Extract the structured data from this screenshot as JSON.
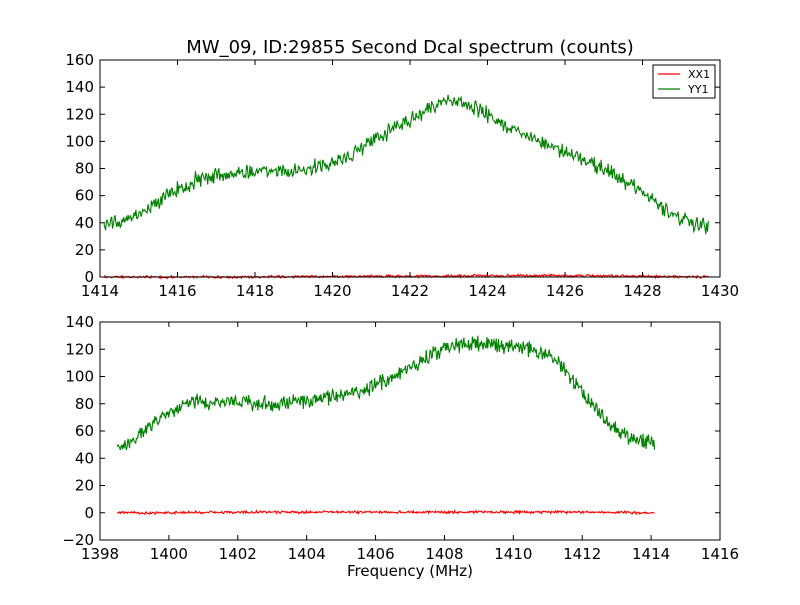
{
  "figure": {
    "title": "MW_09, ID:29855 Second Dcal spectrum (counts)"
  },
  "chart_data": [
    {
      "type": "line",
      "xlim": [
        1414,
        1430
      ],
      "ylim": [
        0,
        160
      ],
      "xticks": [
        "1414",
        "1416",
        "1418",
        "1420",
        "1422",
        "1424",
        "1426",
        "1428",
        "1430"
      ],
      "yticks": [
        "0",
        "20",
        "40",
        "60",
        "80",
        "100",
        "120",
        "140",
        "160"
      ],
      "x_ticks_values": [
        1414,
        1416,
        1418,
        1420,
        1422,
        1424,
        1426,
        1428,
        1430
      ],
      "y_ticks_values": [
        0,
        20,
        40,
        60,
        80,
        100,
        120,
        140,
        160
      ],
      "legend": {
        "placement": "top-right"
      },
      "series": [
        {
          "name": "XX1",
          "color": "#ff0000",
          "x": [
            1414.1,
            1416,
            1418,
            1420,
            1422,
            1424,
            1426,
            1428,
            1429.7
          ],
          "y": [
            0,
            0,
            0,
            0.5,
            0.5,
            1,
            1,
            0.5,
            0
          ]
        },
        {
          "name": "YY1",
          "color": "#008000",
          "x": [
            1414.1,
            1414.5,
            1415,
            1415.5,
            1416,
            1416.5,
            1417,
            1417.5,
            1418,
            1418.5,
            1419,
            1419.5,
            1420,
            1420.5,
            1421,
            1421.5,
            1422,
            1422.5,
            1423,
            1423.5,
            1424,
            1424.5,
            1425,
            1425.5,
            1426,
            1426.5,
            1427,
            1427.5,
            1428,
            1428.5,
            1429,
            1429.7
          ],
          "y": [
            39,
            41,
            46,
            56,
            64,
            72,
            75,
            76,
            77,
            78,
            78,
            80,
            84,
            90,
            100,
            108,
            116,
            124,
            130,
            128,
            120,
            110,
            104,
            98,
            92,
            86,
            80,
            72,
            62,
            52,
            42,
            37
          ]
        }
      ]
    },
    {
      "type": "line",
      "xlim": [
        1398,
        1416
      ],
      "ylim": [
        -20,
        140
      ],
      "xlabel": "Frequency (MHz)",
      "xticks": [
        "1398",
        "1400",
        "1402",
        "1404",
        "1406",
        "1408",
        "1410",
        "1412",
        "1414",
        "1416"
      ],
      "yticks": [
        "−20",
        "0",
        "20",
        "40",
        "60",
        "80",
        "100",
        "120",
        "140"
      ],
      "x_ticks_values": [
        1398,
        1400,
        1402,
        1404,
        1406,
        1408,
        1410,
        1412,
        1414,
        1416
      ],
      "y_ticks_values": [
        -20,
        0,
        20,
        40,
        60,
        80,
        100,
        120,
        140
      ],
      "series": [
        {
          "name": "XX1",
          "color": "#ff0000",
          "x": [
            1398.5,
            1400,
            1402,
            1404,
            1406,
            1408,
            1410,
            1412,
            1414.1
          ],
          "y": [
            0,
            0,
            0.5,
            0.5,
            0.5,
            0.5,
            0.5,
            0.5,
            0
          ]
        },
        {
          "name": "YY1",
          "color": "#008000",
          "x": [
            1398.5,
            1399,
            1399.5,
            1400,
            1400.5,
            1401,
            1401.5,
            1402,
            1402.5,
            1403,
            1403.5,
            1404,
            1404.5,
            1405,
            1405.5,
            1406,
            1406.5,
            1407,
            1407.5,
            1408,
            1408.5,
            1409,
            1409.5,
            1410,
            1410.5,
            1411,
            1411.5,
            1412,
            1412.5,
            1413,
            1413.5,
            1414.1
          ],
          "y": [
            48,
            54,
            64,
            73,
            80,
            82,
            82,
            81,
            80,
            80,
            81,
            82,
            84,
            86,
            89,
            93,
            99,
            106,
            114,
            120,
            123,
            124,
            124,
            122,
            120,
            115,
            105,
            88,
            72,
            61,
            54,
            50
          ]
        }
      ]
    }
  ]
}
